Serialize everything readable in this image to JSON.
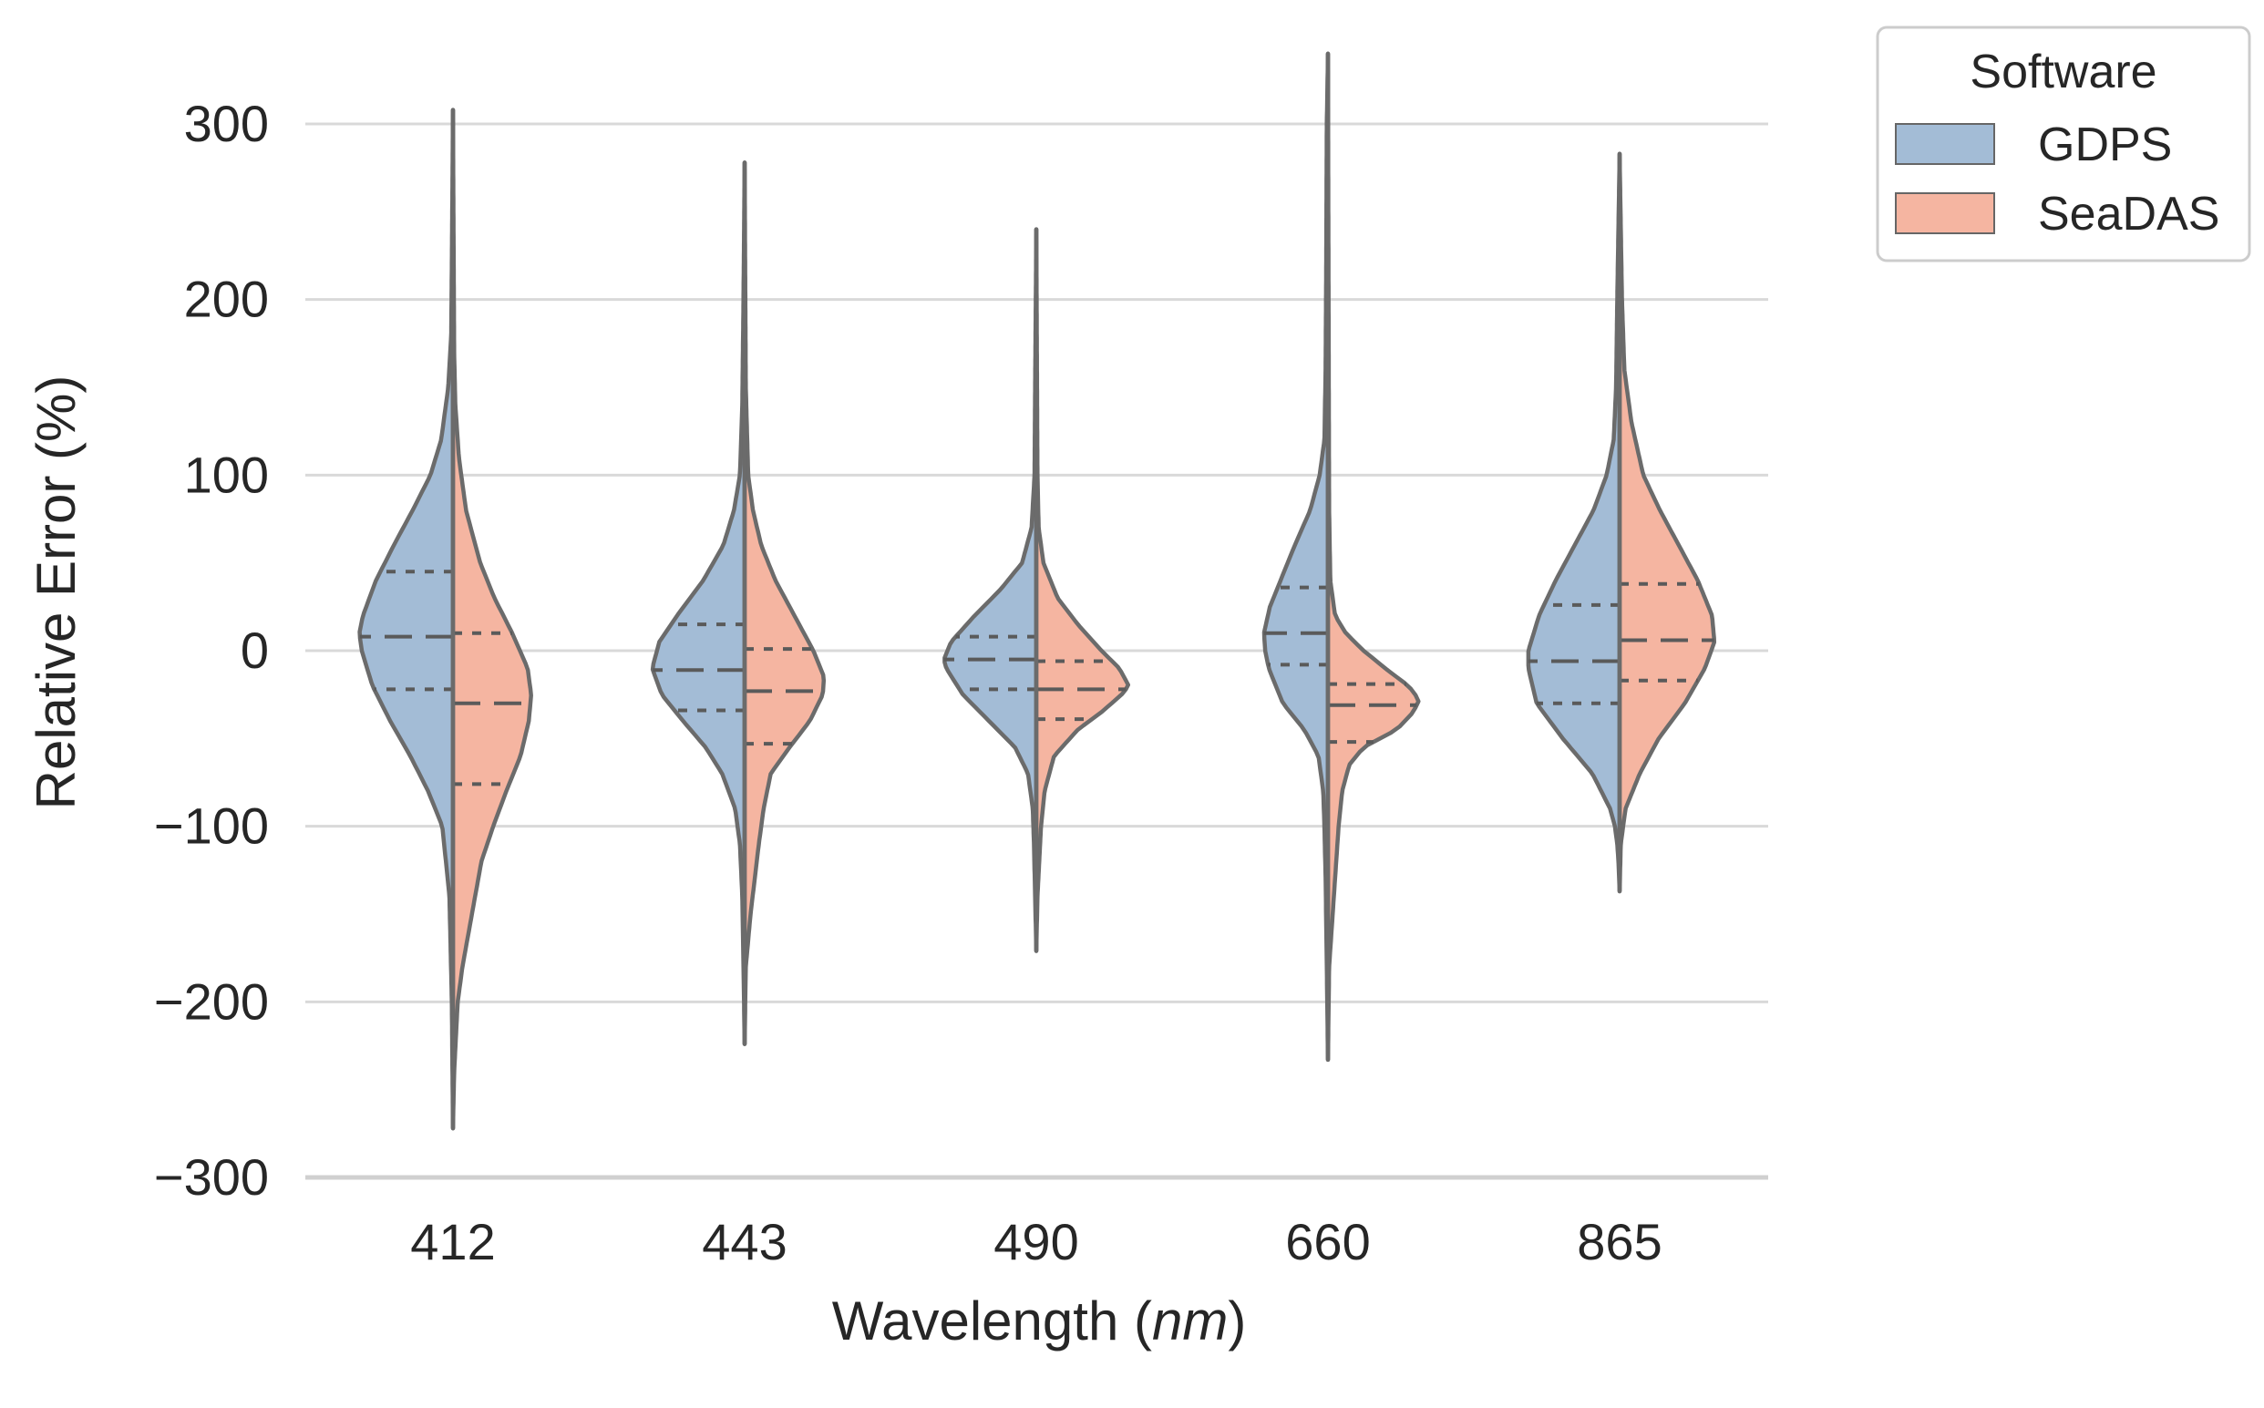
{
  "chart_data": {
    "type": "violin",
    "split": true,
    "xlabel_prefix": "Wavelength (",
    "xlabel_unit": "nm",
    "xlabel_suffix": ")",
    "ylabel": "Relative Error (%)",
    "ylim": [
      -300,
      340
    ],
    "yticks": [
      300,
      200,
      100,
      0,
      -100,
      -200,
      -300
    ],
    "ytick_labels": [
      "300",
      "200",
      "100",
      "0",
      "−100",
      "−200",
      "−300"
    ],
    "grid": true,
    "categories": [
      "412",
      "443",
      "490",
      "660",
      "865"
    ],
    "legend": {
      "title": "Software",
      "position": "outside-top-right",
      "entries": [
        {
          "name": "GDPS",
          "color": "#a3bcd6"
        },
        {
          "name": "SeaDAS",
          "color": "#f5b5a1"
        }
      ]
    },
    "series": [
      {
        "name": "GDPS",
        "side": "left",
        "color": "#a3bcd6",
        "violins": [
          {
            "category": "412",
            "min": -272,
            "max": 308,
            "q1": -22,
            "median": 8,
            "q3": 45,
            "profile": [
              [
                -272,
                0
              ],
              [
                -200,
                1
              ],
              [
                -140,
                3
              ],
              [
                -100,
                9
              ],
              [
                -80,
                21
              ],
              [
                -60,
                36
              ],
              [
                -40,
                53
              ],
              [
                -20,
                68
              ],
              [
                0,
                77
              ],
              [
                10,
                79
              ],
              [
                20,
                76
              ],
              [
                40,
                65
              ],
              [
                60,
                50
              ],
              [
                80,
                34
              ],
              [
                100,
                19
              ],
              [
                120,
                10
              ],
              [
                150,
                4
              ],
              [
                180,
                1.5
              ],
              [
                220,
                1
              ],
              [
                308,
                0
              ]
            ]
          },
          {
            "category": "443",
            "min": -224,
            "max": 278,
            "q1": -34,
            "median": -11,
            "q3": 15,
            "profile": [
              [
                -224,
                0
              ],
              [
                -180,
                1
              ],
              [
                -140,
                2
              ],
              [
                -110,
                4
              ],
              [
                -90,
                8
              ],
              [
                -70,
                19
              ],
              [
                -55,
                33
              ],
              [
                -40,
                52
              ],
              [
                -25,
                70
              ],
              [
                -10,
                78
              ],
              [
                5,
                72
              ],
              [
                20,
                57
              ],
              [
                40,
                35
              ],
              [
                60,
                18
              ],
              [
                80,
                9
              ],
              [
                100,
                4
              ],
              [
                140,
                2
              ],
              [
                200,
                1
              ],
              [
                278,
                0
              ]
            ]
          },
          {
            "category": "490",
            "min": -171,
            "max": 240,
            "q1": -22,
            "median": -5,
            "q3": 8,
            "profile": [
              [
                -171,
                0
              ],
              [
                -140,
                1
              ],
              [
                -110,
                2
              ],
              [
                -90,
                3
              ],
              [
                -70,
                7
              ],
              [
                -55,
                18
              ],
              [
                -40,
                40
              ],
              [
                -25,
                62
              ],
              [
                -10,
                76
              ],
              [
                -5,
                78
              ],
              [
                5,
                72
              ],
              [
                20,
                52
              ],
              [
                35,
                30
              ],
              [
                50,
                12
              ],
              [
                70,
                4
              ],
              [
                100,
                1.5
              ],
              [
                150,
                1
              ],
              [
                240,
                0
              ]
            ]
          },
          {
            "category": "660",
            "min": -233,
            "max": 340,
            "q1": -8,
            "median": 10,
            "q3": 36,
            "profile": [
              [
                -233,
                0
              ],
              [
                -180,
                1
              ],
              [
                -130,
                2
              ],
              [
                -100,
                3
              ],
              [
                -80,
                4
              ],
              [
                -60,
                8
              ],
              [
                -45,
                20
              ],
              [
                -30,
                38
              ],
              [
                -10,
                50
              ],
              [
                0,
                53
              ],
              [
                10,
                54
              ],
              [
                25,
                49
              ],
              [
                40,
                40
              ],
              [
                60,
                28
              ],
              [
                80,
                15
              ],
              [
                100,
                7
              ],
              [
                120,
                3
              ],
              [
                160,
                2
              ],
              [
                220,
                1.5
              ],
              [
                300,
                1
              ],
              [
                340,
                0
              ]
            ]
          },
          {
            "category": "865",
            "min": -137,
            "max": 283,
            "q1": -30,
            "median": -6,
            "q3": 26,
            "profile": [
              [
                -137,
                0
              ],
              [
                -120,
                1
              ],
              [
                -110,
                2
              ],
              [
                -100,
                4
              ],
              [
                -90,
                8
              ],
              [
                -70,
                23
              ],
              [
                -50,
                48
              ],
              [
                -30,
                70
              ],
              [
                -10,
                77
              ],
              [
                0,
                77
              ],
              [
                20,
                68
              ],
              [
                40,
                54
              ],
              [
                60,
                38
              ],
              [
                80,
                22
              ],
              [
                100,
                11
              ],
              [
                120,
                5
              ],
              [
                150,
                3
              ],
              [
                200,
                2
              ],
              [
                283,
                0
              ]
            ]
          }
        ]
      },
      {
        "name": "SeaDAS",
        "side": "right",
        "color": "#f5b5a1",
        "violins": [
          {
            "category": "412",
            "min": -272,
            "max": 308,
            "q1": -76,
            "median": -30,
            "q3": 10,
            "profile": [
              [
                -272,
                0
              ],
              [
                -240,
                1
              ],
              [
                -200,
                4
              ],
              [
                -180,
                8
              ],
              [
                -150,
                16
              ],
              [
                -120,
                24
              ],
              [
                -100,
                34
              ],
              [
                -80,
                45
              ],
              [
                -60,
                57
              ],
              [
                -40,
                64
              ],
              [
                -25,
                66
              ],
              [
                -10,
                63
              ],
              [
                10,
                50
              ],
              [
                30,
                35
              ],
              [
                50,
                23
              ],
              [
                80,
                11
              ],
              [
                110,
                5
              ],
              [
                140,
                2
              ],
              [
                170,
                1
              ],
              [
                308,
                0
              ]
            ]
          },
          {
            "category": "443",
            "min": -224,
            "max": 278,
            "q1": -53,
            "median": -23,
            "q3": 1,
            "profile": [
              [
                -224,
                0
              ],
              [
                -180,
                1
              ],
              [
                -150,
                5
              ],
              [
                -110,
                12
              ],
              [
                -90,
                16
              ],
              [
                -70,
                22
              ],
              [
                -55,
                38
              ],
              [
                -40,
                55
              ],
              [
                -25,
                66
              ],
              [
                -15,
                67
              ],
              [
                0,
                58
              ],
              [
                20,
                42
              ],
              [
                40,
                26
              ],
              [
                60,
                14
              ],
              [
                80,
                7
              ],
              [
                100,
                3
              ],
              [
                150,
                1
              ],
              [
                278,
                0
              ]
            ]
          },
          {
            "category": "490",
            "min": -171,
            "max": 240,
            "q1": -39,
            "median": -22,
            "q3": -6,
            "profile": [
              [
                -171,
                0
              ],
              [
                -140,
                1
              ],
              [
                -100,
                4
              ],
              [
                -80,
                7
              ],
              [
                -60,
                15
              ],
              [
                -45,
                35
              ],
              [
                -35,
                55
              ],
              [
                -25,
                72
              ],
              [
                -20,
                78
              ],
              [
                -10,
                70
              ],
              [
                0,
                55
              ],
              [
                15,
                35
              ],
              [
                30,
                18
              ],
              [
                50,
                6
              ],
              [
                70,
                2
              ],
              [
                100,
                1
              ],
              [
                240,
                0
              ]
            ]
          },
          {
            "category": "660",
            "min": -233,
            "max": 340,
            "q1": -52,
            "median": -31,
            "q3": -19,
            "profile": [
              [
                -233,
                0
              ],
              [
                -180,
                1
              ],
              [
                -130,
                6
              ],
              [
                -100,
                9
              ],
              [
                -80,
                12
              ],
              [
                -65,
                18
              ],
              [
                -55,
                30
              ],
              [
                -45,
                58
              ],
              [
                -35,
                72
              ],
              [
                -28,
                77
              ],
              [
                -20,
                68
              ],
              [
                -12,
                52
              ],
              [
                0,
                30
              ],
              [
                10,
                15
              ],
              [
                20,
                6
              ],
              [
                40,
                2
              ],
              [
                80,
                1
              ],
              [
                340,
                0
              ]
            ]
          },
          {
            "category": "865",
            "min": -137,
            "max": 283,
            "q1": -17,
            "median": 6,
            "q3": 38,
            "profile": [
              [
                -137,
                0
              ],
              [
                -110,
                1
              ],
              [
                -90,
                5
              ],
              [
                -70,
                17
              ],
              [
                -50,
                33
              ],
              [
                -30,
                55
              ],
              [
                -10,
                72
              ],
              [
                5,
                80
              ],
              [
                20,
                78
              ],
              [
                40,
                66
              ],
              [
                60,
                50
              ],
              [
                80,
                34
              ],
              [
                100,
                20
              ],
              [
                130,
                10
              ],
              [
                160,
                4
              ],
              [
                200,
                2
              ],
              [
                283,
                0
              ]
            ]
          }
        ]
      }
    ]
  }
}
